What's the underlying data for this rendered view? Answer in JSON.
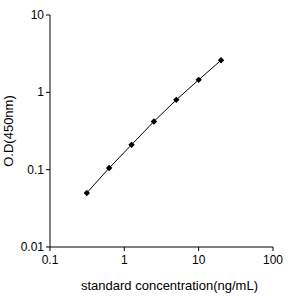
{
  "chart_data": {
    "type": "line",
    "x_label": "standard concentration(ng/mL)",
    "y_label": "O.D(450nm)",
    "x": [
      0.3125,
      0.625,
      1.25,
      2.5,
      5,
      10,
      20
    ],
    "values": [
      0.05,
      0.105,
      0.21,
      0.42,
      0.8,
      1.45,
      2.6
    ],
    "xlim": [
      0.1,
      100
    ],
    "xticks": [
      0.1,
      1,
      10,
      100
    ],
    "ylim": [
      0.01,
      10
    ],
    "yticks": [
      0.01,
      0.1,
      1,
      10
    ],
    "log": true,
    "grid": false,
    "color": "#000000",
    "marker": "diamond",
    "line_style": "solid"
  }
}
